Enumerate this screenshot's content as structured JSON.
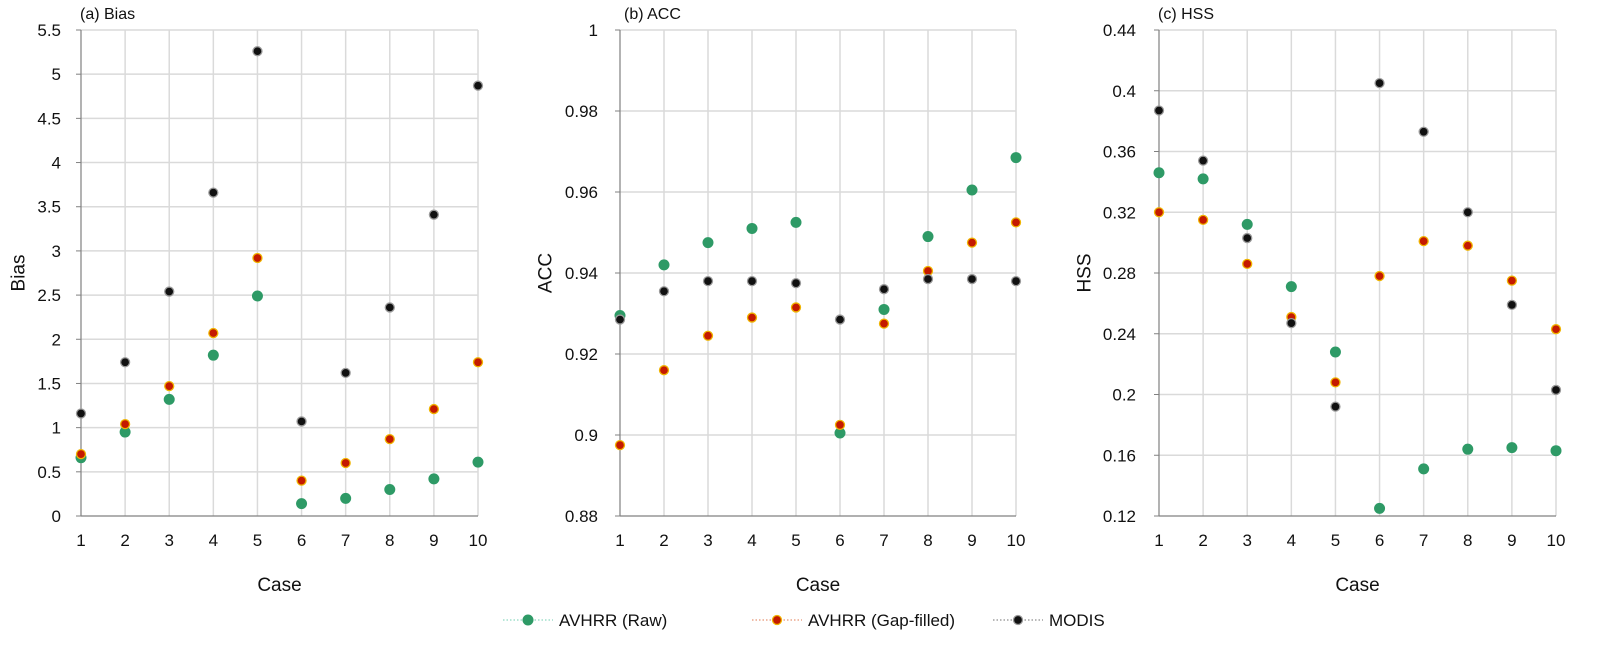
{
  "chart_data": [
    {
      "type": "scatter",
      "title": "(a) Bias",
      "xlabel": "Case",
      "ylabel": "Bias",
      "x": [
        1,
        2,
        3,
        4,
        5,
        6,
        7,
        8,
        9,
        10
      ],
      "xlim": [
        1,
        10
      ],
      "ylim": [
        0,
        5.5
      ],
      "yticks": [
        "0",
        "0.5",
        "1",
        "1.5",
        "2",
        "2.5",
        "3",
        "3.5",
        "4",
        "4.5",
        "5",
        "5.5"
      ],
      "grid": true,
      "series": [
        {
          "name": "AVHRR (Raw)",
          "values": [
            0.66,
            0.95,
            1.32,
            1.82,
            2.49,
            0.14,
            0.2,
            0.3,
            0.42,
            0.61
          ]
        },
        {
          "name": "AVHRR (Gap-filled)",
          "values": [
            0.7,
            1.04,
            1.47,
            2.07,
            2.92,
            0.4,
            0.6,
            0.87,
            1.21,
            1.74
          ]
        },
        {
          "name": "MODIS",
          "values": [
            1.16,
            1.74,
            2.54,
            3.66,
            5.26,
            1.07,
            1.62,
            2.36,
            3.41,
            4.87
          ]
        }
      ]
    },
    {
      "type": "scatter",
      "title": "(b) ACC",
      "xlabel": "Case",
      "ylabel": "ACC",
      "x": [
        1,
        2,
        3,
        4,
        5,
        6,
        7,
        8,
        9,
        10
      ],
      "xlim": [
        1,
        10
      ],
      "ylim": [
        0.88,
        1.0
      ],
      "yticks": [
        "0.88",
        "0.9",
        "0.92",
        "0.94",
        "0.96",
        "0.98",
        "1"
      ],
      "grid": true,
      "series": [
        {
          "name": "AVHRR (Raw)",
          "values": [
            0.9295,
            0.942,
            0.9475,
            0.951,
            0.9525,
            0.9005,
            0.931,
            0.949,
            0.9605,
            0.9685
          ]
        },
        {
          "name": "AVHRR (Gap-filled)",
          "values": [
            0.8975,
            0.916,
            0.9245,
            0.929,
            0.9315,
            0.9025,
            0.9275,
            0.9405,
            0.9475,
            0.9525
          ]
        },
        {
          "name": "MODIS",
          "values": [
            0.9285,
            0.9355,
            0.938,
            0.938,
            0.9375,
            0.9285,
            0.936,
            0.9385,
            0.9385,
            0.938
          ]
        }
      ]
    },
    {
      "type": "scatter",
      "title": "(c) HSS",
      "xlabel": "Case",
      "ylabel": "HSS",
      "x": [
        1,
        2,
        3,
        4,
        5,
        6,
        7,
        8,
        9,
        10
      ],
      "xlim": [
        1,
        10
      ],
      "ylim": [
        0.12,
        0.44
      ],
      "yticks": [
        "0.12",
        "0.16",
        "0.2",
        "0.24",
        "0.28",
        "0.32",
        "0.36",
        "0.4",
        "0.44"
      ],
      "grid": true,
      "series": [
        {
          "name": "AVHRR (Raw)",
          "values": [
            0.346,
            0.342,
            0.312,
            0.271,
            0.228,
            0.125,
            0.151,
            0.164,
            0.165,
            0.163
          ]
        },
        {
          "name": "AVHRR (Gap-filled)",
          "values": [
            0.32,
            0.315,
            0.286,
            0.251,
            0.208,
            0.278,
            0.301,
            0.298,
            0.275,
            0.243
          ]
        },
        {
          "name": "MODIS",
          "values": [
            0.387,
            0.354,
            0.303,
            0.247,
            0.192,
            0.405,
            0.373,
            0.32,
            0.259,
            0.203
          ]
        }
      ]
    }
  ],
  "legend": {
    "position": "bottom-center",
    "items": [
      {
        "label": "AVHRR (Raw)",
        "fill": "#2e9a66",
        "stroke": "#2e9a66",
        "line": "#6fcfb0"
      },
      {
        "label": "AVHRR (Gap-filled)",
        "fill": "#c41a00",
        "stroke": "#f0b400",
        "line": "#e07a50"
      },
      {
        "label": "MODIS",
        "fill": "#111111",
        "stroke": "#9a9a9a",
        "line": "#707070"
      }
    ]
  },
  "colors": {
    "grid": "#dadada",
    "axis": "#808080"
  }
}
